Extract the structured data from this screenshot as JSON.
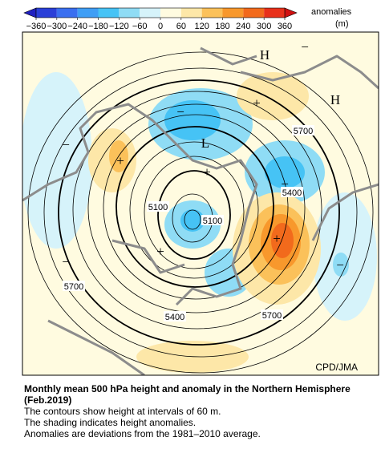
{
  "colorbar": {
    "title": "anomalies",
    "unit": "(m)",
    "ticks": [
      {
        "value": -360,
        "label": "−360"
      },
      {
        "value": -300,
        "label": "−300"
      },
      {
        "value": -240,
        "label": "−240"
      },
      {
        "value": -180,
        "label": "−180"
      },
      {
        "value": -120,
        "label": "−120"
      },
      {
        "value": -60,
        "label": "−60"
      },
      0,
      60,
      120,
      180,
      240,
      300,
      360
    ],
    "colors": [
      "#2a3fd8",
      "#3a6ff0",
      "#3f9ef5",
      "#46c3f5",
      "#8fdcf5",
      "#d6f3fa",
      "#fffbe0",
      "#fde7a8",
      "#fbc15a",
      "#f8982c",
      "#f26a1c",
      "#e8301a"
    ],
    "low_color": "#2020c0",
    "high_color": "#d01010"
  },
  "map": {
    "contour_labels": [
      "5700",
      "5400",
      "5100",
      "5100",
      "5400",
      "5700",
      "5700"
    ],
    "high_markers": [
      "H",
      "H"
    ],
    "low_markers": [
      "L"
    ],
    "plus_markers": [
      "+",
      "+",
      "+",
      "+",
      "+"
    ],
    "minus_markers": [
      "−",
      "−",
      "−",
      "−",
      "−",
      "−"
    ],
    "credit": "CPD/JMA"
  },
  "caption": {
    "title": "Monthly mean 500 hPa height and anomaly in the Northern Hemisphere (Feb.2019)",
    "lines": [
      "The contours show height at intervals of 60 m.",
      "The shading indicates height anomalies.",
      "Anomalies are deviations from the 1981–2010 average."
    ]
  }
}
